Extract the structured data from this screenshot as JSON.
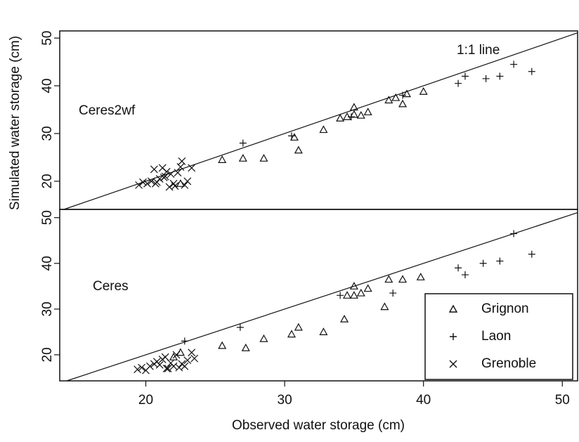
{
  "chart_data": [
    {
      "type": "scatter",
      "panel_label": "Ceres2wf",
      "ylabel": "Simulated water storage (cm)",
      "annotation": "1:1 line",
      "identity_line": true,
      "color": "#111111",
      "xlim": [
        13.8,
        51.1
      ],
      "ylim": [
        14.1,
        51.5
      ],
      "yticks": [
        20,
        30,
        40,
        50
      ],
      "series": [
        {
          "marker": "triangle",
          "x": [
            22.5,
            25.5,
            27.0,
            28.5,
            30.7,
            31.0,
            32.8,
            34.0,
            34.5,
            35.0,
            35.0,
            35.5,
            36.0,
            37.5,
            38.0,
            38.5,
            38.8,
            40.0
          ],
          "y": [
            19.5,
            24.5,
            24.8,
            24.8,
            29.2,
            26.5,
            30.8,
            33.2,
            33.5,
            35.5,
            34.0,
            33.8,
            34.5,
            37.0,
            37.5,
            36.2,
            38.3,
            38.8
          ]
        },
        {
          "marker": "plus",
          "x": [
            27.0,
            30.5,
            34.8,
            38.5,
            42.5,
            43.0,
            44.5,
            45.5,
            46.5,
            47.8
          ],
          "y": [
            28.0,
            29.5,
            33.5,
            38.0,
            40.5,
            42.0,
            41.5,
            42.0,
            44.5,
            43.0
          ]
        },
        {
          "marker": "cross",
          "x": [
            19.5,
            19.8,
            20.1,
            20.4,
            20.6,
            20.8,
            21.0,
            21.2,
            21.4,
            21.5,
            21.7,
            21.8,
            22.0,
            22.1,
            22.3,
            22.5,
            22.6,
            22.8,
            23.0,
            23.3,
            20.7,
            21.3
          ],
          "y": [
            19.2,
            19.8,
            19.5,
            20.0,
            22.5,
            19.8,
            20.5,
            22.8,
            21.0,
            22.0,
            18.8,
            21.5,
            19.5,
            19.0,
            21.8,
            23.0,
            24.2,
            19.2,
            20.0,
            22.8,
            19.5,
            20.8
          ]
        }
      ]
    },
    {
      "type": "scatter",
      "panel_label": "Ceres",
      "xlabel": "Observed water storage (cm)",
      "identity_line": true,
      "color": "#111111",
      "xlim": [
        13.8,
        51.1
      ],
      "ylim": [
        14.3,
        51.8
      ],
      "xticks": [
        20,
        30,
        40,
        50
      ],
      "yticks": [
        20,
        30,
        40,
        50
      ],
      "legend": "bottom-right",
      "series": [
        {
          "name": "Grignon",
          "marker": "triangle",
          "x": [
            22.0,
            22.5,
            25.5,
            27.2,
            28.5,
            30.5,
            31.0,
            32.8,
            34.3,
            34.5,
            35.0,
            35.0,
            35.5,
            36.0,
            37.2,
            37.5,
            38.5,
            39.8
          ],
          "y": [
            19.5,
            20.5,
            22.0,
            21.5,
            23.5,
            24.5,
            26.0,
            25.0,
            27.8,
            33.0,
            35.0,
            33.0,
            33.5,
            34.5,
            30.5,
            36.5,
            36.5,
            37.0
          ]
        },
        {
          "name": "Laon",
          "marker": "plus",
          "x": [
            22.8,
            26.8,
            34.0,
            37.8,
            42.5,
            43.0,
            44.3,
            45.5,
            46.5,
            47.8
          ],
          "y": [
            23.0,
            26.0,
            33.0,
            33.5,
            39.0,
            37.5,
            40.0,
            40.5,
            46.5,
            42.0
          ]
        },
        {
          "name": "Grenoble",
          "marker": "cross",
          "x": [
            19.4,
            19.7,
            20.0,
            20.3,
            20.6,
            20.8,
            21.0,
            21.2,
            21.4,
            21.6,
            21.8,
            22.0,
            22.2,
            22.4,
            22.6,
            22.8,
            23.0,
            23.3,
            23.5,
            21.5
          ],
          "y": [
            16.8,
            17.2,
            16.6,
            17.5,
            18.0,
            18.5,
            17.8,
            19.0,
            19.5,
            17.0,
            18.2,
            17.5,
            20.0,
            17.2,
            18.0,
            17.5,
            18.8,
            20.5,
            19.2,
            17.0
          ]
        }
      ]
    }
  ]
}
